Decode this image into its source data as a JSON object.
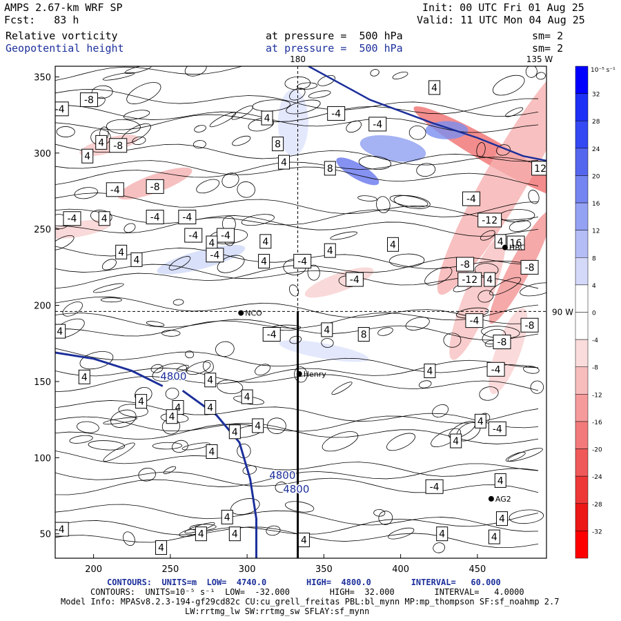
{
  "header": {
    "model": "AMPS 2.67-km WRF SP",
    "init": "Init: 00 UTC Fri 01 Aug 25",
    "fcst": "Fcst:   83 h",
    "valid": "Valid: 11 UTC Mon 04 Aug 25",
    "field1_name": "Relative vorticity",
    "field1_level": "at pressure =  500 hPa",
    "field1_sm": "sm= 2",
    "field2_name": "Geopotential height",
    "field2_level": "at pressure =  500 hPa",
    "field2_sm": "sm= 2"
  },
  "map_labels": {
    "lon_180": "180",
    "lon_135w": "135 W",
    "lon_90w": "90 W",
    "stations": [
      "NCO",
      "Henry",
      "HBC",
      "AG2"
    ]
  },
  "footer": {
    "contours1": "CONTOURS:  UNITS=m  LOW=  4740.0        HIGH=  4800.0        INTERVAL=   60.000",
    "contours2": "CONTOURS:  UNITS=10⁻⁵ s⁻¹  LOW=  -32.000        HIGH=  32.000        INTERVAL=   4.0000",
    "model_info": "Model Info: MPASv8.2.3-194-gf29cd82c CU:cu_grell_freitas PBL:bl_mynn MP:mp_thompson SF:sf_noahmp 2.7",
    "model_info2": "LW:rrtmg_lw SW:rrtmg_sw SFLAY:sf_mynn"
  },
  "colors": {
    "positive": "#0000ff",
    "negative": "#ff0000",
    "height_contour": "#1c2f9a"
  },
  "chart_data": {
    "type": "heatmap",
    "title": "Relative vorticity / Geopotential height at 500 hPa",
    "x_ticks": [
      200,
      250,
      300,
      350,
      400,
      450
    ],
    "y_ticks": [
      50,
      100,
      150,
      200,
      250,
      300,
      350
    ],
    "xlim": [
      175,
      495
    ],
    "ylim": [
      34,
      357
    ],
    "colorbar": {
      "unit_label": "10⁻⁵ s⁻¹",
      "levels": [
        32,
        28,
        24,
        20,
        16,
        12,
        8,
        4,
        0,
        -4,
        -8,
        -12,
        -16,
        -20,
        -24,
        -28,
        -32
      ]
    },
    "height_contours": [
      {
        "value": 4800,
        "label": "4800",
        "points": [
          [
            175,
            169
          ],
          [
            200,
            165
          ],
          [
            225,
            157
          ],
          [
            245,
            147
          ]
        ]
      },
      {
        "value": 4800,
        "label": "4800",
        "points": [
          [
            258,
            144
          ],
          [
            280,
            128
          ],
          [
            295,
            110
          ],
          [
            302,
            86
          ],
          [
            306,
            60
          ],
          [
            306,
            34
          ]
        ]
      }
    ],
    "vorticity_labels": [
      {
        "text": "-8",
        "x": 197,
        "y": 335
      },
      {
        "text": "-4",
        "x": 178,
        "y": 329
      },
      {
        "text": "4",
        "x": 205,
        "y": 307
      },
      {
        "text": "-8",
        "x": 216,
        "y": 305
      },
      {
        "text": "4",
        "x": 196,
        "y": 298
      },
      {
        "text": "-4",
        "x": 214,
        "y": 276
      },
      {
        "text": "-8",
        "x": 240,
        "y": 278
      },
      {
        "text": "-4",
        "x": 186,
        "y": 257
      },
      {
        "text": "4",
        "x": 207,
        "y": 257
      },
      {
        "text": "-4",
        "x": 240,
        "y": 258
      },
      {
        "text": "-4",
        "x": 261,
        "y": 258
      },
      {
        "text": "-4",
        "x": 265,
        "y": 246
      },
      {
        "text": "-4",
        "x": 286,
        "y": 246
      },
      {
        "text": "4",
        "x": 277,
        "y": 241
      },
      {
        "text": "4",
        "x": 218,
        "y": 235
      },
      {
        "text": "4",
        "x": 228,
        "y": 230
      },
      {
        "text": "-4",
        "x": 279,
        "y": 233
      },
      {
        "text": "4",
        "x": 312,
        "y": 242
      },
      {
        "text": "4",
        "x": 311,
        "y": 229
      },
      {
        "text": "-4",
        "x": 336,
        "y": 229
      },
      {
        "text": "4",
        "x": 354,
        "y": 236
      },
      {
        "text": "4",
        "x": 395,
        "y": 240
      },
      {
        "text": "-4",
        "x": 370,
        "y": 217
      },
      {
        "text": "4",
        "x": 313,
        "y": 323
      },
      {
        "text": "8",
        "x": 320,
        "y": 306
      },
      {
        "text": "4",
        "x": 324,
        "y": 294
      },
      {
        "text": "8",
        "x": 354,
        "y": 290
      },
      {
        "text": "-4",
        "x": 358,
        "y": 326
      },
      {
        "text": "-4",
        "x": 385,
        "y": 319
      },
      {
        "text": "4",
        "x": 422,
        "y": 343
      },
      {
        "text": "12",
        "x": 491,
        "y": 290
      },
      {
        "text": "-4",
        "x": 446,
        "y": 270
      },
      {
        "text": "-12",
        "x": 458,
        "y": 256
      },
      {
        "text": "4",
        "x": 465,
        "y": 242
      },
      {
        "text": "16",
        "x": 475,
        "y": 241
      },
      {
        "text": "-8",
        "x": 442,
        "y": 227
      },
      {
        "text": "-12",
        "x": 445,
        "y": 217
      },
      {
        "text": "4",
        "x": 458,
        "y": 217
      },
      {
        "text": "-8",
        "x": 484,
        "y": 225
      },
      {
        "text": "4",
        "x": 178,
        "y": 183
      },
      {
        "text": "-4",
        "x": 316,
        "y": 181
      },
      {
        "text": "4",
        "x": 352,
        "y": 184
      },
      {
        "text": "8",
        "x": 376,
        "y": 181
      },
      {
        "text": "-4",
        "x": 448,
        "y": 190
      },
      {
        "text": "-8",
        "x": 484,
        "y": 187
      },
      {
        "text": "-8",
        "x": 466,
        "y": 176
      },
      {
        "text": "-4",
        "x": 462,
        "y": 158
      },
      {
        "text": "4",
        "x": 419,
        "y": 157
      },
      {
        "text": "4",
        "x": 194,
        "y": 153
      },
      {
        "text": "4",
        "x": 276,
        "y": 151
      },
      {
        "text": "4",
        "x": 300,
        "y": 140
      },
      {
        "text": "4",
        "x": 231,
        "y": 137
      },
      {
        "text": "4",
        "x": 255,
        "y": 133
      },
      {
        "text": "4",
        "x": 276,
        "y": 133
      },
      {
        "text": "4",
        "x": 251,
        "y": 127
      },
      {
        "text": "4",
        "x": 307,
        "y": 121
      },
      {
        "text": "4",
        "x": 452,
        "y": 124
      },
      {
        "text": "-4",
        "x": 463,
        "y": 119
      },
      {
        "text": "4",
        "x": 292,
        "y": 117
      },
      {
        "text": "4",
        "x": 436,
        "y": 111
      },
      {
        "text": "4",
        "x": 277,
        "y": 104
      },
      {
        "text": "-4",
        "x": 422,
        "y": 81
      },
      {
        "text": "4",
        "x": 465,
        "y": 85
      },
      {
        "text": "4",
        "x": 466,
        "y": 60
      },
      {
        "text": "-4",
        "x": 178,
        "y": 53
      },
      {
        "text": "4",
        "x": 292,
        "y": 50
      },
      {
        "text": "4",
        "x": 270,
        "y": 50
      },
      {
        "text": "4",
        "x": 287,
        "y": 61
      },
      {
        "text": "4",
        "x": 337,
        "y": 46
      },
      {
        "text": "4",
        "x": 427,
        "y": 50
      },
      {
        "text": "4",
        "x": 461,
        "y": 48
      },
      {
        "text": "4",
        "x": 244,
        "y": 41
      }
    ],
    "stations": [
      {
        "name": "NCO",
        "x": 296,
        "y": 195
      },
      {
        "name": "Henry",
        "x": 334,
        "y": 155
      },
      {
        "name": "HBC",
        "x": 468,
        "y": 238
      },
      {
        "name": "AG2",
        "x": 459,
        "y": 73
      }
    ]
  }
}
